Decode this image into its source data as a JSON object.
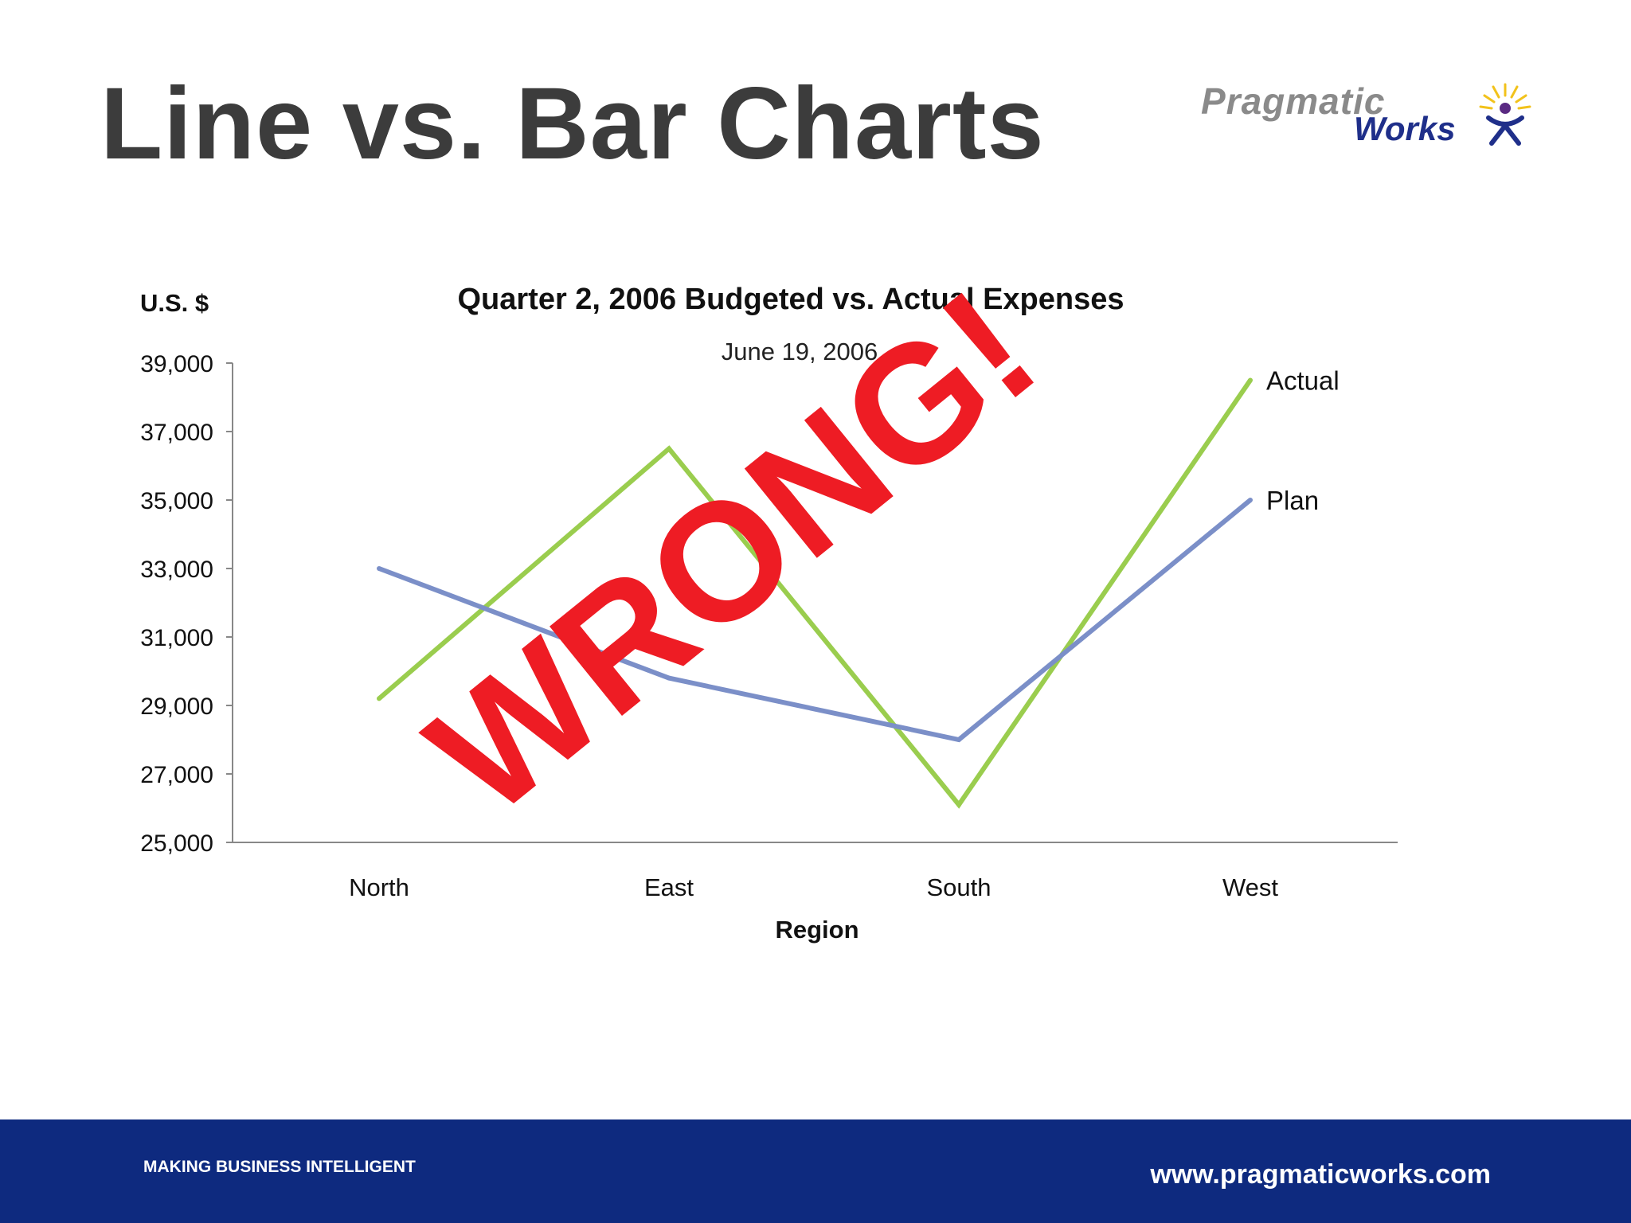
{
  "slide": {
    "title": "Line vs. Bar Charts"
  },
  "logo": {
    "line1": "Pragmatic",
    "line2": "Works"
  },
  "stamp": {
    "text": "WRONG!",
    "color": "#ee1c24"
  },
  "footer": {
    "tagline": "MAKING BUSINESS INTELLIGENT",
    "url": "www.pragmaticworks.com",
    "background": "#0e2a7f"
  },
  "chart_data": {
    "type": "line",
    "title": "Quarter 2, 2006 Budgeted vs. Actual Expenses",
    "subtitle": "June 19, 2006",
    "xlabel": "Region",
    "ylabel": "U.S. $",
    "categories": [
      "North",
      "East",
      "South",
      "West"
    ],
    "ylim": [
      25000,
      39000
    ],
    "yticks": [
      25000,
      27000,
      29000,
      31000,
      33000,
      35000,
      37000,
      39000
    ],
    "ytick_labels": [
      "25,000",
      "27,000",
      "29,000",
      "31,000",
      "33,000",
      "35,000",
      "37,000",
      "39,000"
    ],
    "grid": false,
    "legend": "inline-right",
    "series": [
      {
        "name": "Actual",
        "values": [
          29200,
          36500,
          26100,
          38500
        ],
        "color": "#9acd4e"
      },
      {
        "name": "Plan",
        "values": [
          33000,
          29800,
          28000,
          35000
        ],
        "color": "#7b8fc8"
      }
    ]
  }
}
